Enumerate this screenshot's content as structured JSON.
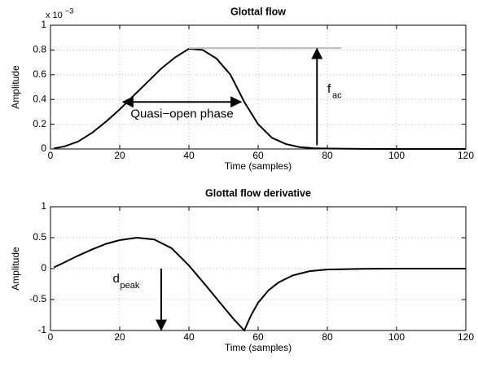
{
  "chart_data": [
    {
      "type": "line",
      "title": "Glottal flow",
      "xlabel": "Time (samples)",
      "ylabel": "Amplitude",
      "multiplier": "x 10",
      "multiplier_exp": "−3",
      "xlim": [
        0,
        120
      ],
      "xticks": [
        0,
        20,
        40,
        60,
        80,
        100,
        120
      ],
      "ylim": [
        0,
        1
      ],
      "yticks": [
        0,
        0.2,
        0.4,
        0.6,
        0.8,
        1
      ],
      "grid": true,
      "annotations": [
        "Quasi−open phase",
        "f",
        "ac"
      ],
      "series": [
        {
          "color": "#000000",
          "x": [
            1,
            4,
            8,
            12,
            16,
            20,
            24,
            28,
            32,
            36,
            40,
            44,
            48,
            52,
            56,
            60,
            64,
            68,
            72,
            76,
            80,
            90,
            100,
            110,
            120
          ],
          "values": [
            0.005,
            0.02,
            0.06,
            0.13,
            0.22,
            0.32,
            0.43,
            0.54,
            0.65,
            0.74,
            0.81,
            0.8,
            0.73,
            0.6,
            0.38,
            0.2,
            0.09,
            0.04,
            0.015,
            0.006,
            0.003,
            0.001,
            0,
            0,
            0
          ]
        }
      ]
    },
    {
      "type": "line",
      "title": "Glottal flow derivative",
      "xlabel": "Time (samples)",
      "ylabel": "Amplitude",
      "xlim": [
        0,
        120
      ],
      "xticks": [
        0,
        20,
        40,
        60,
        80,
        100,
        120
      ],
      "ylim": [
        -1,
        1
      ],
      "yticks": [
        -1,
        -0.5,
        0,
        0.5,
        1
      ],
      "grid": true,
      "annotations": [
        "d",
        "peak"
      ],
      "series": [
        {
          "color": "#000000",
          "x": [
            1,
            4,
            8,
            12,
            16,
            20,
            25,
            30,
            35,
            40,
            45,
            50,
            53,
            56,
            58,
            60,
            63,
            66,
            70,
            75,
            80,
            90,
            100,
            110,
            120
          ],
          "values": [
            0.02,
            0.1,
            0.21,
            0.31,
            0.4,
            0.46,
            0.5,
            0.47,
            0.33,
            0.05,
            -0.28,
            -0.62,
            -0.82,
            -1,
            -0.75,
            -0.55,
            -0.35,
            -0.22,
            -0.11,
            -0.04,
            -0.015,
            -0.003,
            0,
            0,
            0
          ]
        }
      ]
    }
  ]
}
